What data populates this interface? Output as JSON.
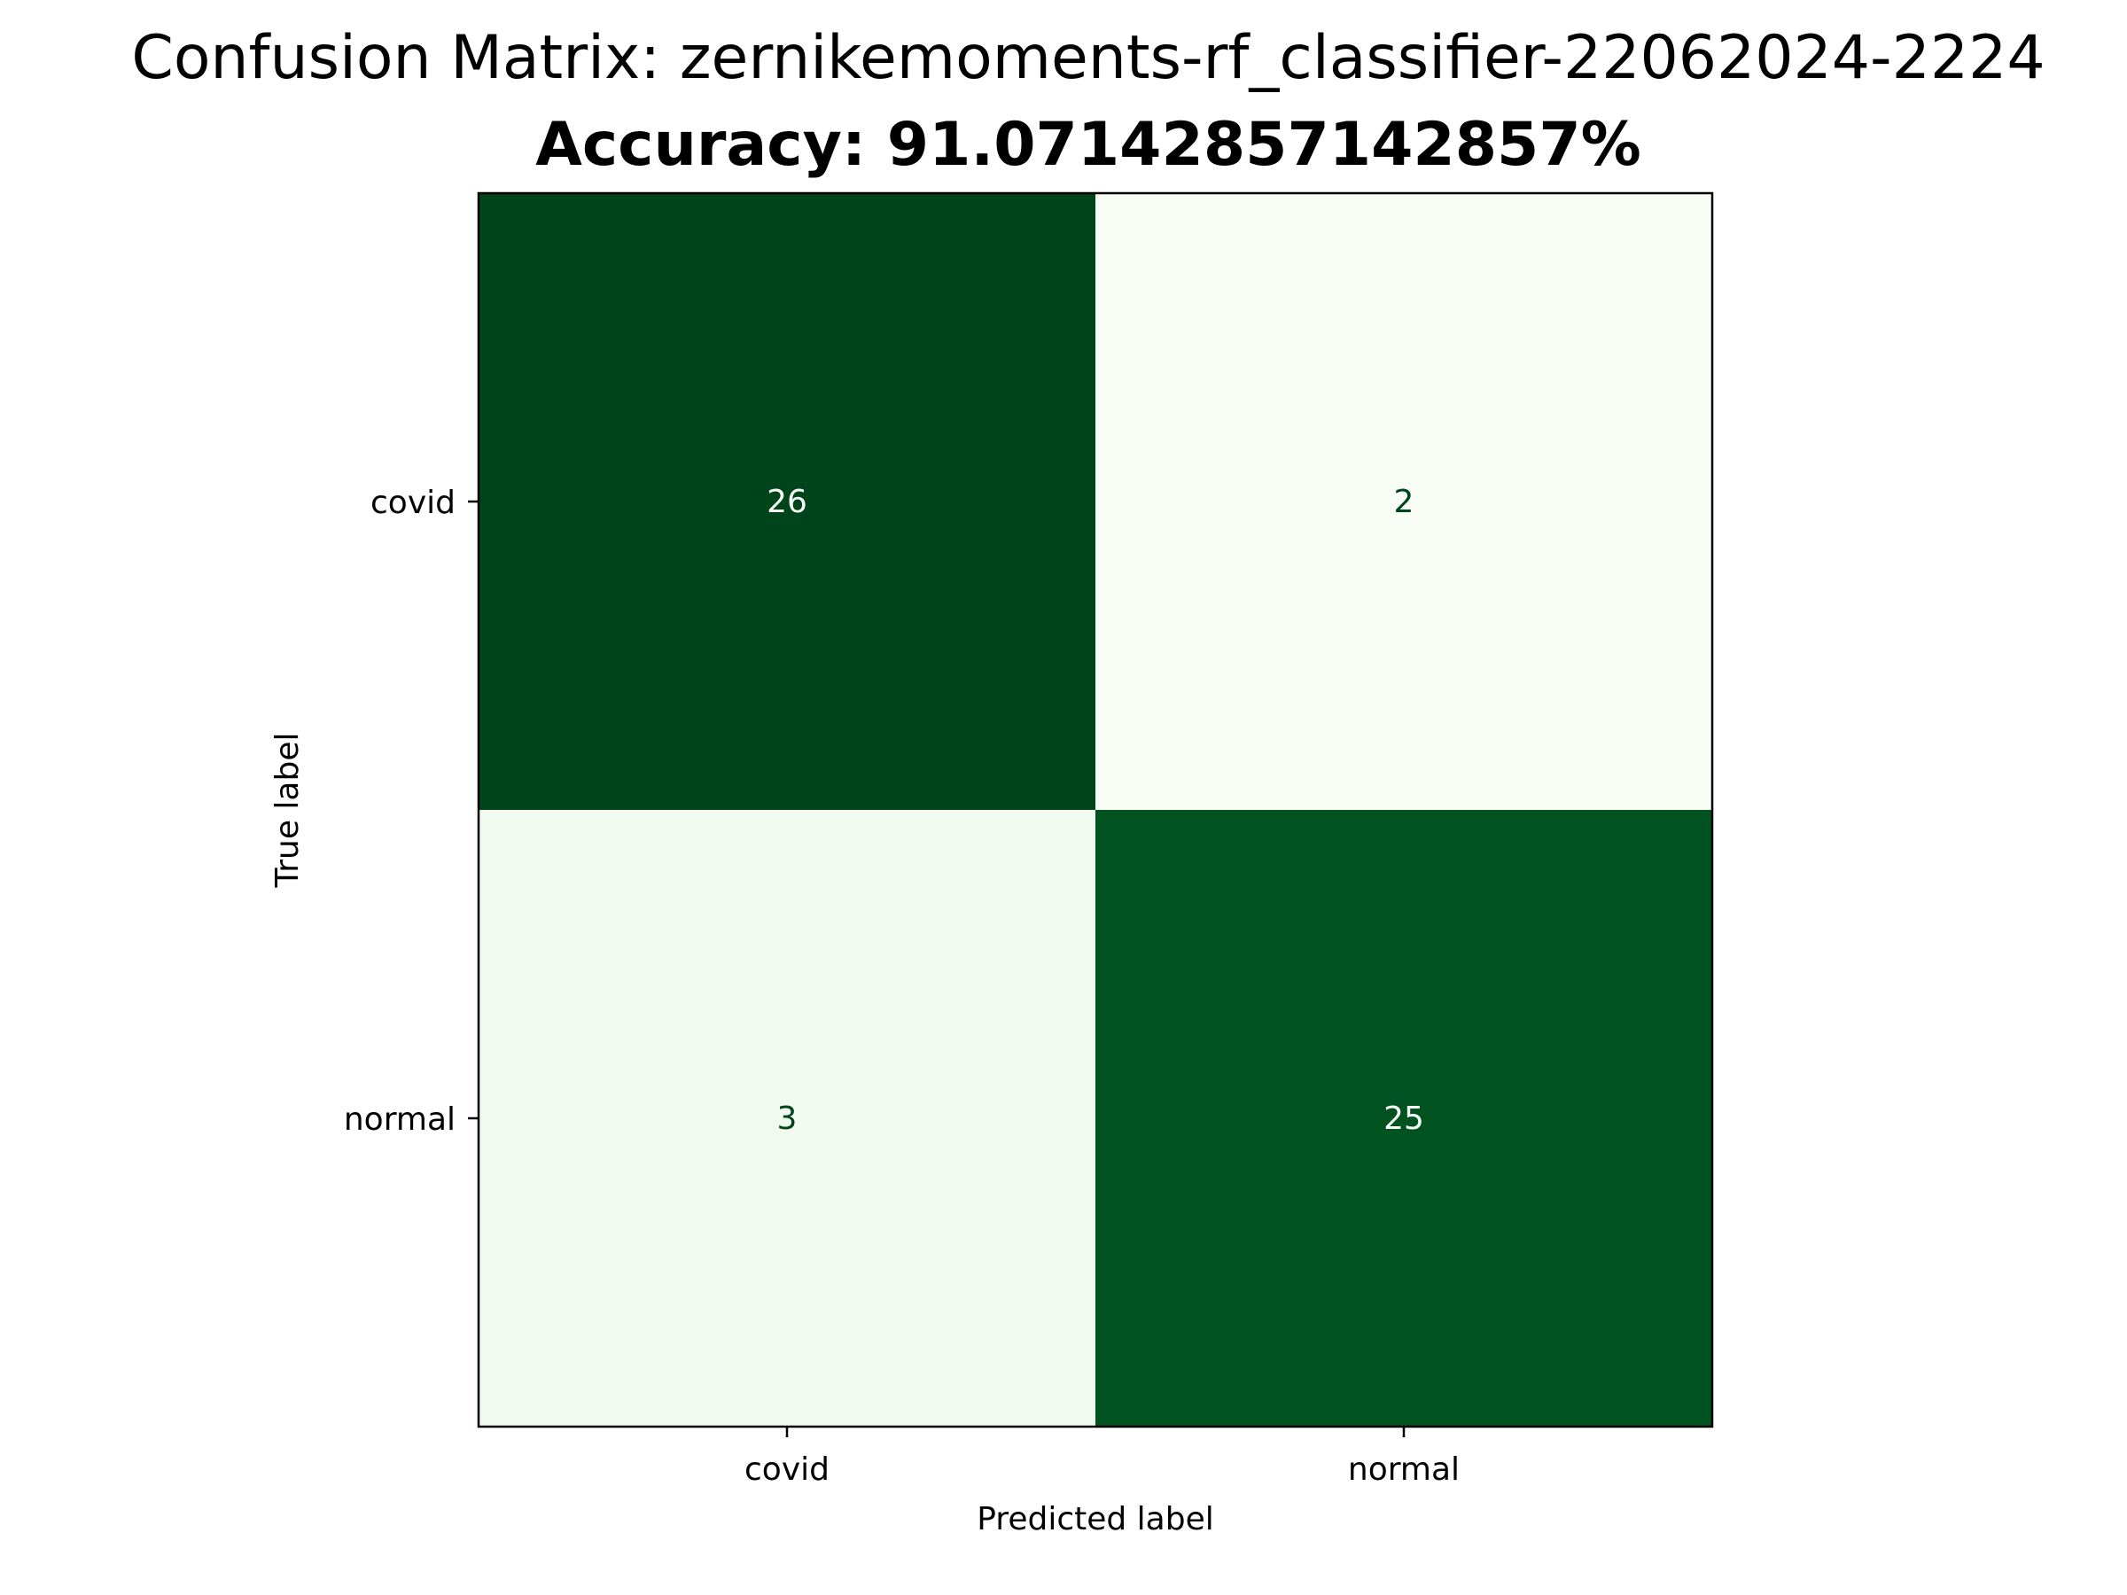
{
  "chart_data": {
    "type": "heatmap",
    "title": "Confusion Matrix: zernikemoments-rf_classifier-22062024-2224",
    "subtitle": "Accuracy: 91.07142857142857%",
    "xlabel": "Predicted label",
    "ylabel": "True label",
    "x_categories": [
      "covid",
      "normal"
    ],
    "y_categories": [
      "covid",
      "normal"
    ],
    "values": [
      [
        26,
        2
      ],
      [
        3,
        25
      ]
    ],
    "colormap": "Greens",
    "colors": {
      "low": "#f7fcf5",
      "high": "#00441b",
      "text_dark_bg": "#f7fcf5",
      "text_light_bg": "#00441b"
    }
  }
}
